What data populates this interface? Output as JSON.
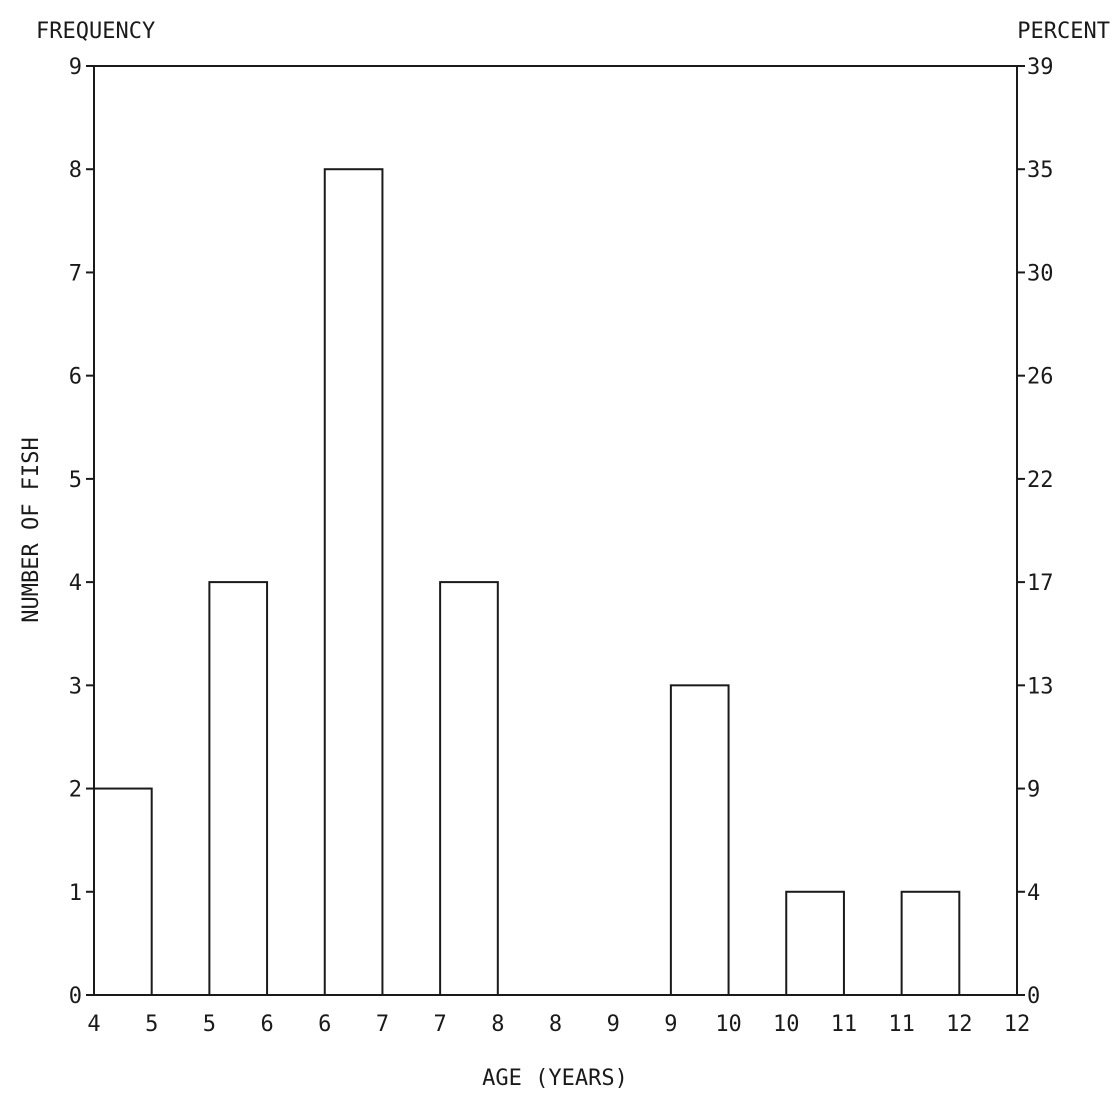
{
  "chart_data": {
    "type": "bar",
    "title": "",
    "xlabel": "AGE (YEARS)",
    "ylabel": "NUMBER OF FISH",
    "left_axis_header": "FREQUENCY",
    "right_axis_header": "PERCENT",
    "ylim": [
      0,
      9
    ],
    "xlim": [
      4,
      12
    ],
    "grid": false,
    "legend": "none",
    "bar_color": "#ffffff",
    "line_color": "#1a1a1a",
    "y_ticks": [
      {
        "value": 0,
        "label": "0"
      },
      {
        "value": 1,
        "label": "1"
      },
      {
        "value": 2,
        "label": "2"
      },
      {
        "value": 3,
        "label": "3"
      },
      {
        "value": 4,
        "label": "4"
      },
      {
        "value": 5,
        "label": "5"
      },
      {
        "value": 6,
        "label": "6"
      },
      {
        "value": 7,
        "label": "7"
      },
      {
        "value": 8,
        "label": "8"
      },
      {
        "value": 9,
        "label": "9"
      }
    ],
    "right_ticks": [
      {
        "value": 0,
        "label": "0"
      },
      {
        "value": 1,
        "label": "4"
      },
      {
        "value": 2,
        "label": "9"
      },
      {
        "value": 3,
        "label": "13"
      },
      {
        "value": 4,
        "label": "17"
      },
      {
        "value": 5,
        "label": "22"
      },
      {
        "value": 6,
        "label": "26"
      },
      {
        "value": 7,
        "label": "30"
      },
      {
        "value": 8,
        "label": "35"
      },
      {
        "value": 9,
        "label": "39"
      }
    ],
    "x_tick_labels": [
      {
        "pos": 4,
        "label": "4"
      },
      {
        "pos": 4.5,
        "label": "5"
      },
      {
        "pos": 5,
        "label": "5"
      },
      {
        "pos": 5.5,
        "label": "6"
      },
      {
        "pos": 6,
        "label": "6"
      },
      {
        "pos": 6.5,
        "label": "7"
      },
      {
        "pos": 7,
        "label": "7"
      },
      {
        "pos": 7.5,
        "label": "8"
      },
      {
        "pos": 8,
        "label": "8"
      },
      {
        "pos": 8.5,
        "label": "9"
      },
      {
        "pos": 9,
        "label": "9"
      },
      {
        "pos": 9.5,
        "label": "10"
      },
      {
        "pos": 10,
        "label": "10"
      },
      {
        "pos": 10.5,
        "label": "11"
      },
      {
        "pos": 11,
        "label": "11"
      },
      {
        "pos": 11.5,
        "label": "12"
      }
    ],
    "bars": [
      {
        "start": 4,
        "end": 4.5,
        "value": 2
      },
      {
        "start": 5,
        "end": 5.5,
        "value": 4
      },
      {
        "start": 6,
        "end": 6.5,
        "value": 8
      },
      {
        "start": 7,
        "end": 7.5,
        "value": 4
      },
      {
        "start": 8,
        "end": 8.5,
        "value": 0
      },
      {
        "start": 9,
        "end": 9.5,
        "value": 3
      },
      {
        "start": 10,
        "end": 10.5,
        "value": 1
      },
      {
        "start": 11,
        "end": 11.5,
        "value": 1
      }
    ]
  }
}
